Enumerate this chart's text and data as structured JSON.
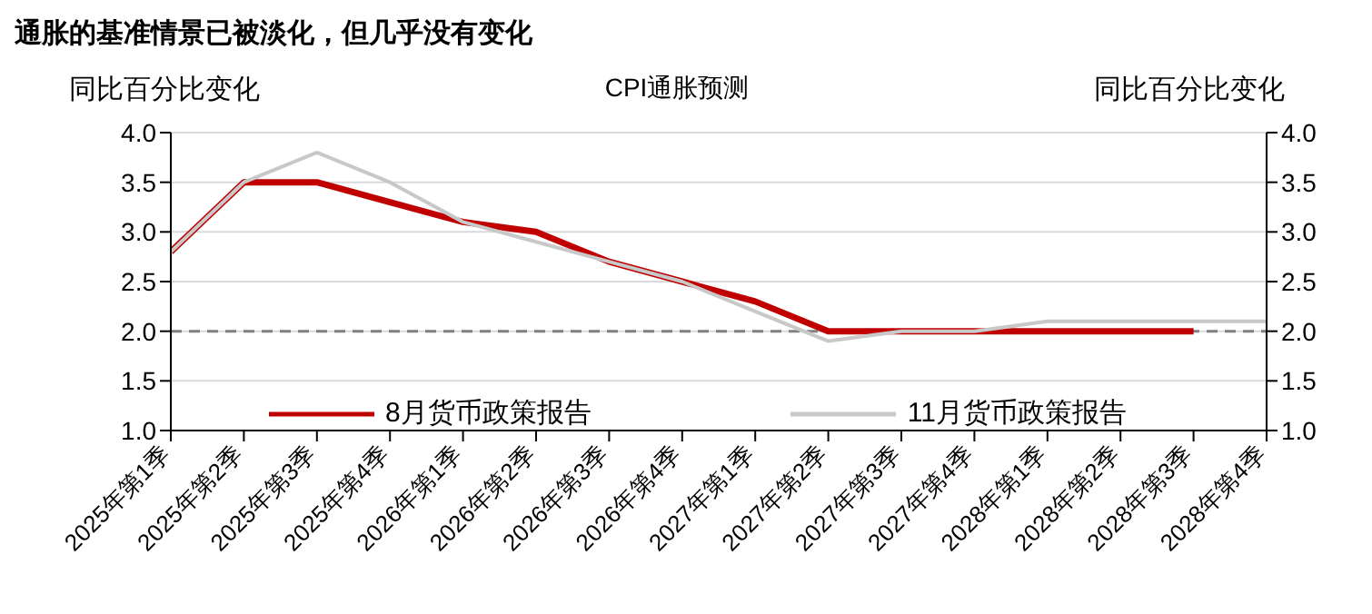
{
  "chart_data": {
    "type": "line",
    "title": "通胀的基准情景已被淡化，但几乎没有变化",
    "subtitle": "CPI通胀预测",
    "ylabel": "同比百分比变化",
    "y2label": "同比百分比变化",
    "categories": [
      "2025年第1季",
      "2025年第2季",
      "2025年第3季",
      "2025年第4季",
      "2026年第1季",
      "2026年第2季",
      "2026年第3季",
      "2026年第4季",
      "2027年第1季",
      "2027年第2季",
      "2027年第3季",
      "2027年第4季",
      "2028年第1季",
      "2028年第2季",
      "2028年第3季",
      "2028年第4季"
    ],
    "series": [
      {
        "name": "8月货币政策报告",
        "color": "#c00000",
        "values": [
          2.8,
          3.5,
          3.5,
          3.3,
          3.1,
          3.0,
          2.7,
          2.5,
          2.3,
          2.0,
          2.0,
          2.0,
          2.0,
          2.0,
          2.0,
          null
        ]
      },
      {
        "name": "11月货币政策报告",
        "color": "#c8c8c8",
        "values": [
          2.8,
          3.5,
          3.8,
          3.5,
          3.1,
          2.9,
          2.7,
          2.5,
          2.2,
          1.9,
          2.0,
          2.0,
          2.1,
          2.1,
          2.1,
          2.1
        ]
      }
    ],
    "ylim": [
      1.0,
      4.0
    ],
    "yticks": [
      {
        "value": 1,
        "label": "1.0"
      },
      {
        "value": 1.5,
        "label": "1.5"
      },
      {
        "value": 2,
        "label": "2.0"
      },
      {
        "value": 2.5,
        "label": "2.5"
      },
      {
        "value": 3,
        "label": "3.0"
      },
      {
        "value": 3.5,
        "label": "3.5"
      },
      {
        "value": 4,
        "label": "4.0"
      }
    ],
    "y2lim": [
      1.0,
      4.0
    ],
    "y2ticks": [
      {
        "value": 1,
        "label": "1.0"
      },
      {
        "value": 1.5,
        "label": "1.5"
      },
      {
        "value": 2,
        "label": "2.0"
      },
      {
        "value": 2.5,
        "label": "2.5"
      },
      {
        "value": 3,
        "label": "3.0"
      },
      {
        "value": 3.5,
        "label": "3.5"
      },
      {
        "value": 4,
        "label": "4.0"
      }
    ],
    "ref_lines": [
      {
        "axis": "y",
        "value": 2.0,
        "color": "#808080",
        "line_style": "dashed"
      }
    ],
    "grid": "y",
    "legend": "bottom",
    "marker": "none",
    "line_style": "solid"
  }
}
